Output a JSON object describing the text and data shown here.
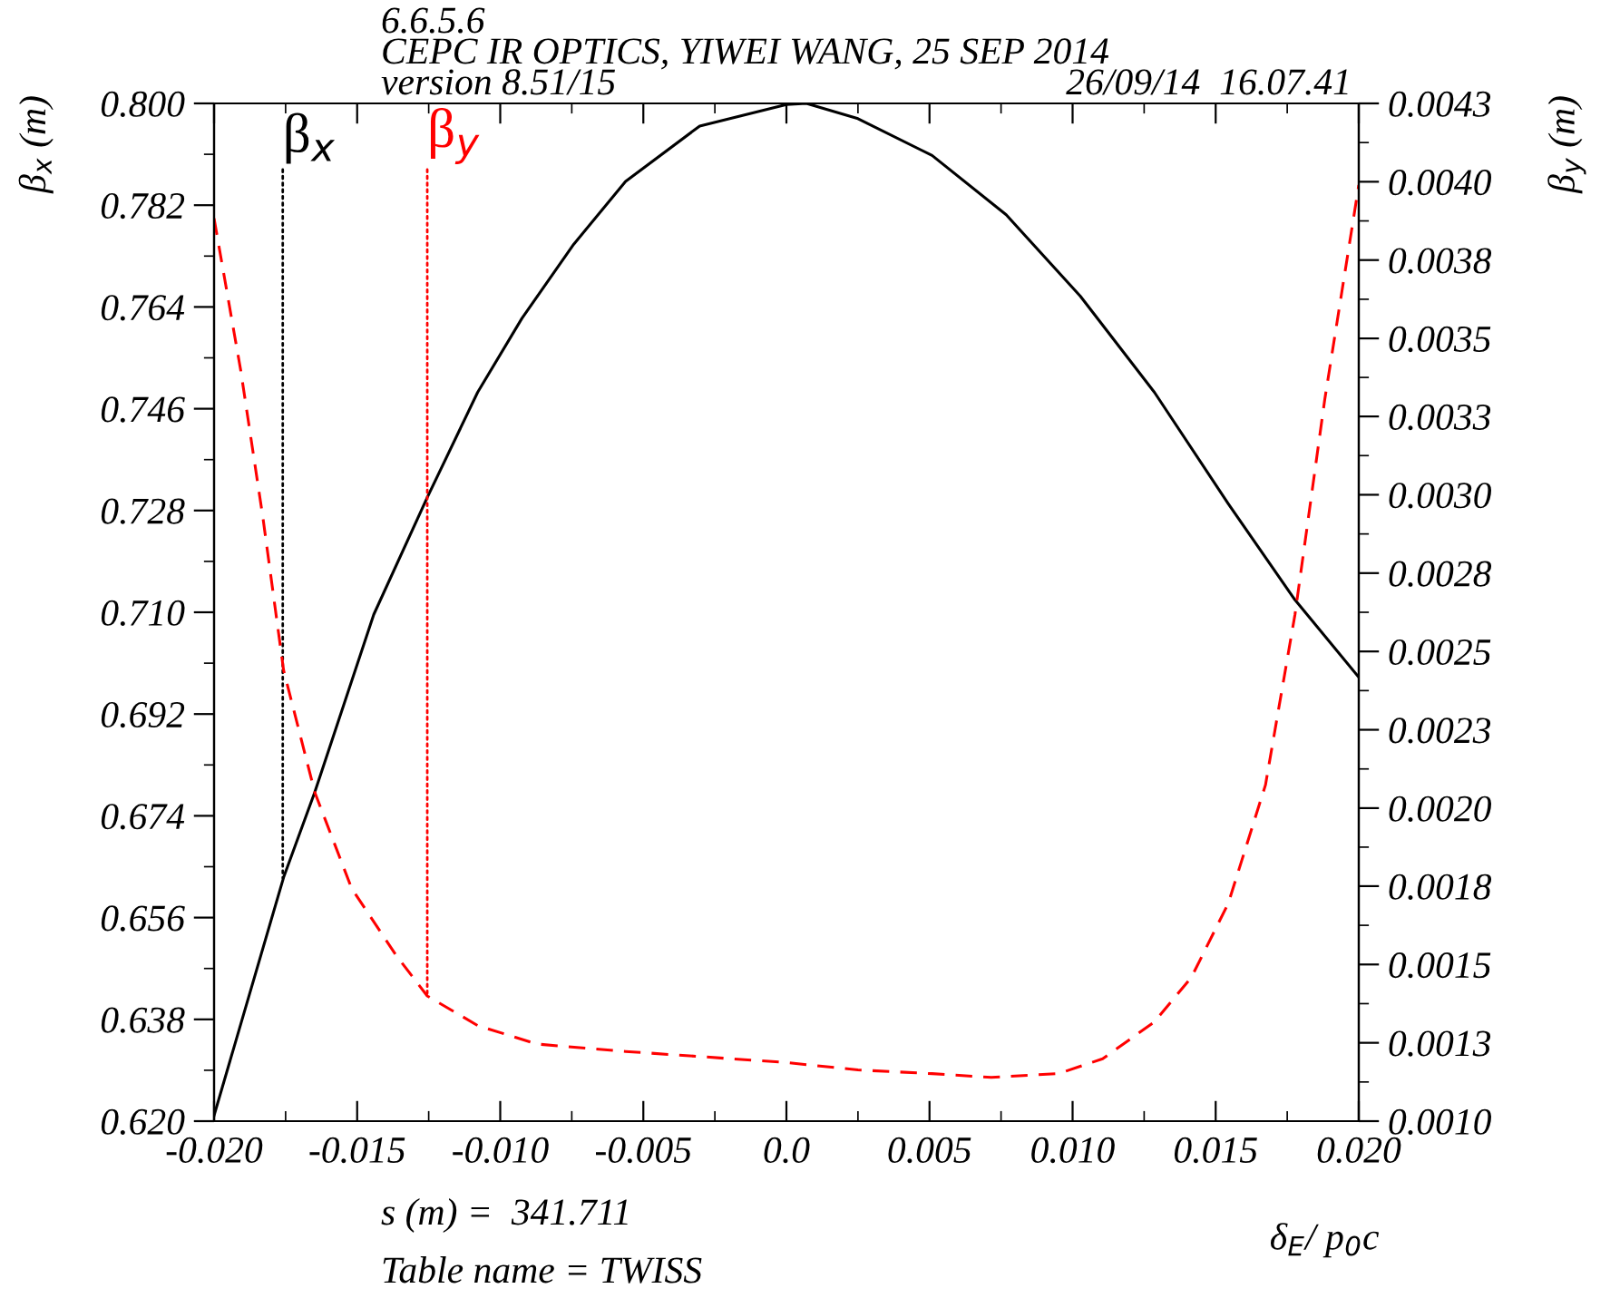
{
  "chart_data": {
    "type": "line",
    "title": "CEPC IR OPTICS, YIWEI WANG, 25 SEP 2014",
    "xlabel": "δ$_{E}$/ p$_{0}$c",
    "ylabel": "β$_{x}$ (m)",
    "y2label": "β$_{y}$ (m)",
    "annotations": [
      {
        "text": "β$_{x}$",
        "x": -0.0176,
        "y": 0.663
      },
      {
        "text": "β$_{y}$",
        "x": -0.01255,
        "y": 0.6421
      },
      "6.6.5.6",
      "version 8.51/15",
      "26/09/14  16.07.41",
      "s (m) =  341.711",
      "Table name = TWISS"
    ],
    "series": [
      {
        "color": "#000000",
        "line_style": "solid",
        "x": [
          -0.02,
          -0.01757,
          -0.01648,
          -0.01442,
          -0.01255,
          -0.01079,
          -0.00924,
          -0.00743,
          -0.00562,
          -0.00303,
          0.0,
          0.0007,
          0.0025,
          0.00509,
          0.00768,
          0.01027,
          0.01286,
          0.01544,
          0.01777,
          0.02
        ],
        "values": [
          0.621,
          0.6631,
          0.6782,
          0.7096,
          0.7303,
          0.7489,
          0.762,
          0.7751,
          0.7862,
          0.796,
          0.7998,
          0.8,
          0.7973,
          0.7908,
          0.7803,
          0.7659,
          0.7489,
          0.7292,
          0.7122,
          0.6985
        ]
      },
      {
        "color": "#ff0000",
        "line_style": "dashed",
        "axis": "y2",
        "x": [
          -0.02,
          -0.01907,
          -0.01829,
          -0.01757,
          -0.01648,
          -0.01519,
          -0.01364,
          -0.01255,
          -0.01079,
          -0.00872,
          -0.00562,
          0.0,
          0.0025,
          0.00509,
          0.00716,
          0.0095,
          0.01105,
          0.01286,
          0.01415,
          0.01544,
          0.01674,
          0.01777,
          0.01881,
          0.02
        ],
        "values": [
          0.003927,
          0.003435,
          0.002955,
          0.002462,
          0.002066,
          0.001754,
          0.001538,
          0.001406,
          0.00131,
          0.00125,
          0.001226,
          0.00119,
          0.001166,
          0.001154,
          0.001142,
          0.001154,
          0.001202,
          0.001322,
          0.001466,
          0.001706,
          0.00209,
          0.002642,
          0.003339,
          0.004035
        ]
      }
    ],
    "xlim": [
      -0.02,
      0.02
    ],
    "xticks": [
      {
        "value": -0.02,
        "label": "-0.020"
      },
      {
        "value": -0.015,
        "label": "-0.015"
      },
      {
        "value": -0.01,
        "label": "-0.010"
      },
      {
        "value": -0.005,
        "label": "-0.005"
      },
      {
        "value": 0.0,
        "label": "0.0"
      },
      {
        "value": 0.005,
        "label": "0.005"
      },
      {
        "value": 0.01,
        "label": "0.010"
      },
      {
        "value": 0.015,
        "label": "0.015"
      },
      {
        "value": 0.02,
        "label": "0.020"
      }
    ],
    "ylim": [
      0.62,
      0.8
    ],
    "yticks": [
      {
        "value": 0.62,
        "label": "0.620"
      },
      0.638,
      0.656,
      0.674,
      0.692,
      {
        "value": 0.71,
        "label": "0.710"
      },
      0.728,
      0.746,
      0.764,
      0.782,
      {
        "value": 0.8,
        "label": "0.800"
      }
    ],
    "y2lim": [
      0.001,
      0.0043
    ],
    "y2ticks": [
      {
        "value": 0.001,
        "label": "0.0010"
      },
      {
        "value": 0.001254,
        "label": "0.0013"
      },
      {
        "value": 0.001508,
        "label": "0.0015"
      },
      {
        "value": 0.001762,
        "label": "0.0018"
      },
      {
        "value": 0.002015,
        "label": "0.0020"
      },
      {
        "value": 0.002269,
        "label": "0.0023"
      },
      {
        "value": 0.002523,
        "label": "0.0025"
      },
      {
        "value": 0.002777,
        "label": "0.0028"
      },
      {
        "value": 0.003031,
        "label": "0.0030"
      },
      {
        "value": 0.003285,
        "label": "0.0033"
      },
      {
        "value": 0.003538,
        "label": "0.0035"
      },
      {
        "value": 0.003792,
        "label": "0.0038"
      },
      {
        "value": 0.004046,
        "label": "0.0040"
      },
      {
        "value": 0.0043,
        "label": "0.0043"
      }
    ],
    "grid": false,
    "legend": false
  }
}
